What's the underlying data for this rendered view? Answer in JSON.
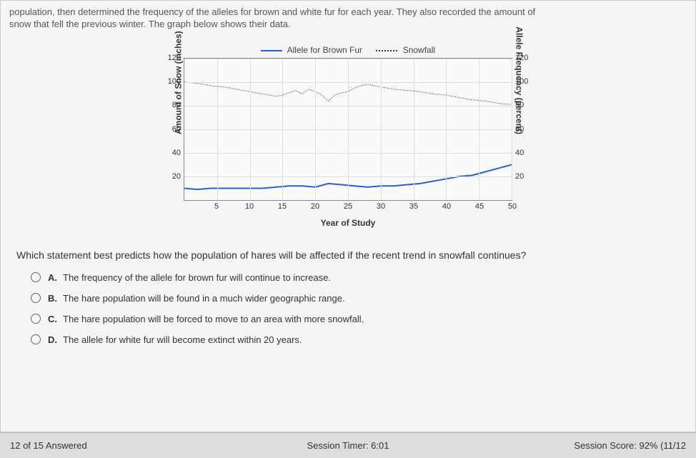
{
  "intro": {
    "line1": "population, then determined the frequency of the alleles for brown and white fur for each year. They also recorded the amount of",
    "line2": "snow that fell the previous winter. The graph below shows their data."
  },
  "chart": {
    "legend": {
      "series1": "Allele for Brown Fur",
      "series2": "Snowfall"
    },
    "y_left_label": "Amount of Snow (inches)",
    "y_right_label": "Allele Frequency (percent)",
    "x_label": "Year of Study",
    "y_min": 0,
    "y_max": 120,
    "y_ticks": [
      20,
      40,
      60,
      80,
      100,
      120
    ],
    "x_ticks": [
      5,
      10,
      15,
      20,
      25,
      30,
      35,
      40,
      45,
      50
    ],
    "x_min": 0,
    "x_max": 50,
    "grid_color": "#dddddd",
    "background": "#fafafa",
    "border_color": "#888888",
    "snowfall": {
      "color": "#333333",
      "style": "dotted",
      "points": [
        [
          0,
          100
        ],
        [
          2,
          99
        ],
        [
          4,
          97
        ],
        [
          6,
          96
        ],
        [
          8,
          94
        ],
        [
          10,
          92
        ],
        [
          12,
          90
        ],
        [
          14,
          88
        ],
        [
          15,
          89
        ],
        [
          16,
          91
        ],
        [
          17,
          93
        ],
        [
          18,
          90
        ],
        [
          19,
          94
        ],
        [
          20,
          92
        ],
        [
          21,
          89
        ],
        [
          22,
          84
        ],
        [
          23,
          89
        ],
        [
          24,
          91
        ],
        [
          25,
          92
        ],
        [
          26,
          95
        ],
        [
          27,
          97
        ],
        [
          28,
          98
        ],
        [
          29,
          97
        ],
        [
          30,
          96
        ],
        [
          32,
          94
        ],
        [
          34,
          93
        ],
        [
          36,
          92
        ],
        [
          38,
          90
        ],
        [
          40,
          89
        ],
        [
          42,
          87
        ],
        [
          44,
          85
        ],
        [
          46,
          84
        ],
        [
          48,
          82
        ],
        [
          50,
          81
        ]
      ]
    },
    "brown_fur": {
      "color": "#2860d0",
      "style": "solid",
      "width": 2,
      "points": [
        [
          0,
          10
        ],
        [
          2,
          9
        ],
        [
          4,
          10
        ],
        [
          6,
          10
        ],
        [
          8,
          10
        ],
        [
          10,
          10
        ],
        [
          12,
          10
        ],
        [
          14,
          11
        ],
        [
          16,
          12
        ],
        [
          18,
          12
        ],
        [
          20,
          11
        ],
        [
          22,
          14
        ],
        [
          24,
          13
        ],
        [
          26,
          12
        ],
        [
          28,
          11
        ],
        [
          30,
          12
        ],
        [
          32,
          12
        ],
        [
          34,
          13
        ],
        [
          36,
          14
        ],
        [
          38,
          16
        ],
        [
          40,
          18
        ],
        [
          42,
          20
        ],
        [
          44,
          21
        ],
        [
          46,
          24
        ],
        [
          48,
          27
        ],
        [
          50,
          30
        ]
      ]
    }
  },
  "question": "Which statement best predicts how the population of hares will be affected if the recent trend in snowfall continues?",
  "options": [
    {
      "letter": "A.",
      "text": "The frequency of the allele for brown fur will continue to increase."
    },
    {
      "letter": "B.",
      "text": "The hare population will be found in a much wider geographic range."
    },
    {
      "letter": "C.",
      "text": "The hare population will be forced to move to an area with more snowfall."
    },
    {
      "letter": "D.",
      "text": "The allele for white fur will become extinct within 20 years."
    }
  ],
  "footer": {
    "left": "12 of 15 Answered",
    "center": "Session Timer: 6:01",
    "right": "Session Score: 92% (11/12"
  }
}
